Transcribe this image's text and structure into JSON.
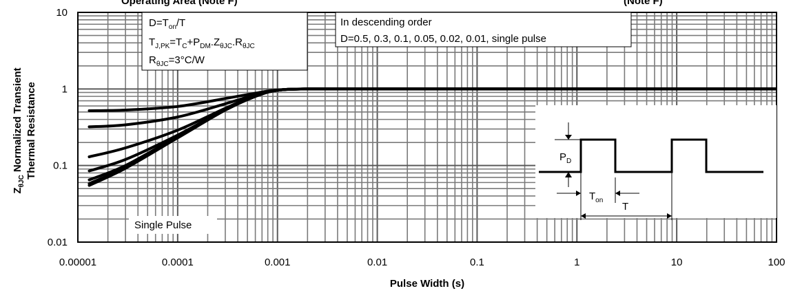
{
  "chart_data": {
    "type": "line",
    "title": "",
    "xlabel": "Pulse Width (s)",
    "ylabel_parts": {
      "line1_prefix": "Z",
      "line1_sub": "θJC",
      "line1_rest": " Normalized Transient",
      "line2": "Thermal Resistance"
    },
    "x_scale": "log",
    "y_scale": "log",
    "xlim": [
      1e-05,
      100
    ],
    "ylim": [
      0.01,
      10
    ],
    "grid": true,
    "x_tick_labels": [
      "0.00001",
      "0.0001",
      "0.001",
      "0.01",
      "0.1",
      "1",
      "10",
      "100"
    ],
    "y_tick_labels": [
      "0.01",
      "0.1",
      "1",
      "10"
    ],
    "top_cropped_texts": [
      "Operating Area (Note F)",
      "(Note F)"
    ],
    "annotations": {
      "formula": {
        "line1": {
          "a": "D=T",
          "a_sub": "on",
          "b": "/T"
        },
        "line2": {
          "a": "T",
          "a_sub": "J,PK",
          "b": "=T",
          "b_sub": "C",
          "c": "+P",
          "c_sub": "DM",
          "d": ".Z",
          "d_sub": "θJC",
          "e": ".R",
          "e_sub": "θJC"
        },
        "line3": {
          "a": "R",
          "a_sub": "θJC",
          "b": "=3°C/W"
        }
      },
      "order_title": "In descending order",
      "order_values": "D=0.5, 0.3, 0.1, 0.05, 0.02, 0.01, single pulse",
      "single_pulse": "Single Pulse"
    },
    "inset": {
      "pd_main": "P",
      "pd_sub": "D",
      "ton_main": "T",
      "ton_sub": "on",
      "period": "T"
    },
    "series": [
      {
        "label": "D=0.5",
        "x": [
          1.3e-05,
          3e-05,
          0.0001,
          0.0003,
          0.0006,
          0.001,
          0.002,
          0.01,
          1,
          100
        ],
        "y": [
          0.52,
          0.53,
          0.59,
          0.75,
          0.88,
          0.97,
          1.0,
          1.0,
          1.0,
          1.0
        ]
      },
      {
        "label": "D=0.3",
        "x": [
          1.3e-05,
          3e-05,
          0.0001,
          0.0003,
          0.0006,
          0.001,
          0.002,
          0.01,
          1,
          100
        ],
        "y": [
          0.32,
          0.34,
          0.43,
          0.64,
          0.84,
          0.96,
          1.0,
          1.0,
          1.0,
          1.0
        ]
      },
      {
        "label": "D=0.1",
        "x": [
          1.3e-05,
          3e-05,
          0.0001,
          0.0003,
          0.0006,
          0.001,
          0.002,
          0.01,
          1,
          100
        ],
        "y": [
          0.13,
          0.17,
          0.29,
          0.56,
          0.82,
          0.96,
          1.0,
          1.0,
          1.0,
          1.0
        ]
      },
      {
        "label": "D=0.05",
        "x": [
          1.3e-05,
          3e-05,
          0.0001,
          0.0003,
          0.0006,
          0.001,
          0.002,
          0.01,
          1,
          100
        ],
        "y": [
          0.085,
          0.12,
          0.25,
          0.54,
          0.81,
          0.96,
          1.0,
          1.0,
          1.0,
          1.0
        ]
      },
      {
        "label": "D=0.02",
        "x": [
          1.3e-05,
          3e-05,
          0.0001,
          0.0003,
          0.0006,
          0.001,
          0.002,
          0.01,
          1,
          100
        ],
        "y": [
          0.065,
          0.1,
          0.24,
          0.53,
          0.8,
          0.96,
          1.0,
          1.0,
          1.0,
          1.0
        ]
      },
      {
        "label": "D=0.01",
        "x": [
          1.3e-05,
          3e-05,
          0.0001,
          0.0003,
          0.0006,
          0.001,
          0.002,
          0.01,
          1,
          100
        ],
        "y": [
          0.058,
          0.095,
          0.235,
          0.53,
          0.8,
          0.96,
          1.0,
          1.0,
          1.0,
          1.0
        ]
      },
      {
        "label": "single pulse",
        "x": [
          1.3e-05,
          3e-05,
          0.0001,
          0.0003,
          0.0006,
          0.001,
          0.002,
          0.01,
          1,
          100
        ],
        "y": [
          0.055,
          0.092,
          0.23,
          0.53,
          0.8,
          0.96,
          1.0,
          1.0,
          1.0,
          1.0
        ]
      }
    ],
    "colors": {
      "grid_major": "#5a5a5a",
      "grid_minor": "#7a7a7a",
      "curve": "#000000",
      "background": "#ffffff"
    }
  }
}
